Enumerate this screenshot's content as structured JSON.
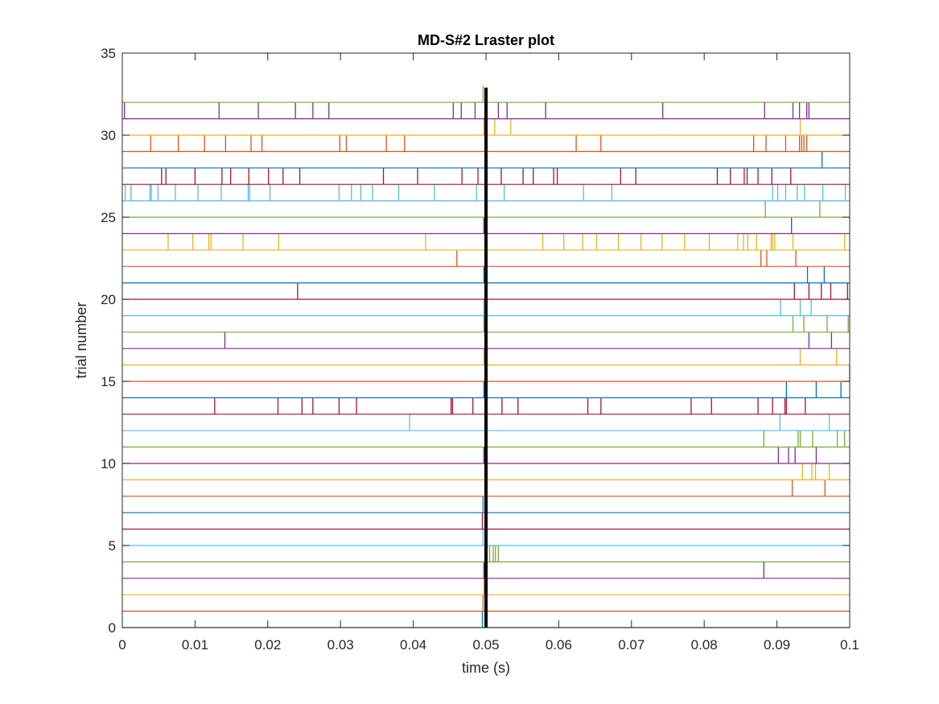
{
  "chart_data": {
    "type": "scatter",
    "title": "MD-S#2 Lraster plot",
    "xlabel": "time (s)",
    "ylabel": "trial number",
    "xlim": [
      0,
      0.1
    ],
    "ylim": [
      0,
      35
    ],
    "xticks": [
      "0",
      "0.01",
      "0.02",
      "0.03",
      "0.04",
      "0.05",
      "0.06",
      "0.07",
      "0.08",
      "0.09",
      "0.1"
    ],
    "yticks": [
      "0",
      "5",
      "10",
      "15",
      "20",
      "25",
      "30",
      "35"
    ],
    "grid": false,
    "legend": "none",
    "event_marker": {
      "x": 0.05,
      "color": "#000000"
    },
    "color_cycle": [
      "#0072BD",
      "#D95319",
      "#EDB120",
      "#7E2F8E",
      "#77AC30",
      "#4DBEEE",
      "#A2142F"
    ],
    "trials": [
      {
        "trial": 1,
        "spikes": [
          0.0495
        ]
      },
      {
        "trial": 2,
        "spikes": [
          0.0496
        ]
      },
      {
        "trial": 3,
        "spikes": [
          0.0497
        ]
      },
      {
        "trial": 4,
        "spikes": [
          0.0497,
          0.0882
        ]
      },
      {
        "trial": 5,
        "spikes": [
          0.0505,
          0.051,
          0.0513,
          0.0517
        ]
      },
      {
        "trial": 6,
        "spikes": [
          0.0496
        ]
      },
      {
        "trial": 7,
        "spikes": [
          0.0495
        ]
      },
      {
        "trial": 8,
        "spikes": [
          0.0496
        ]
      },
      {
        "trial": 9,
        "spikes": [
          0.0921,
          0.0966
        ]
      },
      {
        "trial": 10,
        "spikes": [
          0.0935,
          0.0948,
          0.0953,
          0.0972
        ]
      },
      {
        "trial": 11,
        "spikes": [
          0.0497,
          0.0902,
          0.0916,
          0.0925,
          0.0954
        ]
      },
      {
        "trial": 12,
        "spikes": [
          0.0882,
          0.0929,
          0.0932,
          0.0949,
          0.0983,
          0.0993
        ]
      },
      {
        "trial": 13,
        "spikes": [
          0.0395,
          0.0904,
          0.0972
        ]
      },
      {
        "trial": 14,
        "spikes": [
          0.0127,
          0.0214,
          0.0247,
          0.0262,
          0.0298,
          0.0322,
          0.0452,
          0.0454,
          0.0482,
          0.0522,
          0.0544,
          0.064,
          0.0658,
          0.0782,
          0.081,
          0.0874,
          0.0894,
          0.0911,
          0.0913,
          0.0939
        ]
      },
      {
        "trial": 15,
        "spikes": [
          0.0497,
          0.0913,
          0.0954,
          0.0988
        ]
      },
      {
        "trial": 16,
        "spikes": [
          0.1
        ]
      },
      {
        "trial": 17,
        "spikes": [
          0.0497,
          0.0932,
          0.0982
        ]
      },
      {
        "trial": 18,
        "spikes": [
          0.0141,
          0.0944,
          0.0975
        ]
      },
      {
        "trial": 19,
        "spikes": [
          0.0497,
          0.0922,
          0.0937,
          0.0969,
          0.0998
        ]
      },
      {
        "trial": 20,
        "spikes": [
          0.0497,
          0.0905,
          0.0932,
          0.0947
        ]
      },
      {
        "trial": 21,
        "spikes": [
          0.0241,
          0.0924,
          0.0944,
          0.0961,
          0.0974,
          0.0997
        ]
      },
      {
        "trial": 22,
        "spikes": [
          0.0497,
          0.0942,
          0.0965
        ]
      },
      {
        "trial": 23,
        "spikes": [
          0.046,
          0.0878,
          0.0886,
          0.0926
        ]
      },
      {
        "trial": 24,
        "spikes": [
          0.0063,
          0.0097,
          0.0119,
          0.0122,
          0.0166,
          0.0215,
          0.0417,
          0.0578,
          0.0607,
          0.0633,
          0.0652,
          0.0682,
          0.0713,
          0.0742,
          0.0773,
          0.0807,
          0.0846,
          0.0854,
          0.0872,
          0.0892,
          0.0922,
          0.086,
          0.0894,
          0.0897,
          0.0993
        ]
      },
      {
        "trial": 25,
        "spikes": [
          0.0497,
          0.092
        ]
      },
      {
        "trial": 26,
        "spikes": [
          0.0884,
          0.0959
        ]
      },
      {
        "trial": 27,
        "spikes": [
          0.0004,
          0.0012,
          0.0038,
          0.004,
          0.0049,
          0.0073,
          0.0104,
          0.0136,
          0.0173,
          0.0175,
          0.0203,
          0.0298,
          0.0315,
          0.0328,
          0.0344,
          0.038,
          0.0429,
          0.0487,
          0.0525,
          0.0634,
          0.0673,
          0.0894,
          0.0901,
          0.0912,
          0.0928,
          0.0938,
          0.0963,
          0.0994
        ]
      },
      {
        "trial": 28,
        "spikes": [
          0.0054,
          0.006,
          0.01,
          0.0137,
          0.0149,
          0.0174,
          0.0201,
          0.0221,
          0.0244,
          0.0359,
          0.0406,
          0.0467,
          0.0489,
          0.0521,
          0.0551,
          0.0565,
          0.0593,
          0.0598,
          0.0685,
          0.0706,
          0.0818,
          0.0836,
          0.0855,
          0.0859,
          0.0874,
          0.0893,
          0.0919
        ]
      },
      {
        "trial": 29,
        "spikes": [
          0.0962
        ]
      },
      {
        "trial": 30,
        "spikes": [
          0.0039,
          0.0077,
          0.0113,
          0.0142,
          0.0177,
          0.0192,
          0.0299,
          0.0308,
          0.0363,
          0.0388,
          0.0624,
          0.0658,
          0.0868,
          0.0885,
          0.0912,
          0.0931,
          0.0934,
          0.0937,
          0.0941
        ]
      },
      {
        "trial": 31,
        "spikes": [
          0.0497,
          0.0512,
          0.0534,
          0.0932
        ]
      },
      {
        "trial": 32,
        "spikes": [
          0.0003,
          0.0133,
          0.0187,
          0.0238,
          0.0262,
          0.0284,
          0.0455,
          0.0466,
          0.0485,
          0.0517,
          0.0529,
          0.0582,
          0.0743,
          0.0883,
          0.0922,
          0.0931,
          0.0941,
          0.0944
        ]
      },
      {
        "trial": 33,
        "spikes": [
          0.0496
        ]
      }
    ]
  }
}
